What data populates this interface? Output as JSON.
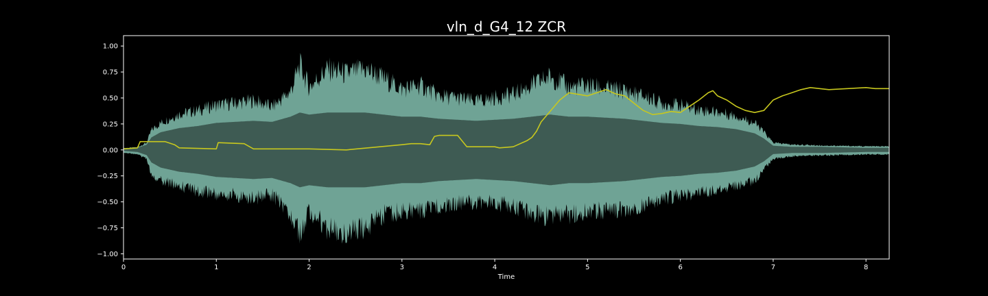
{
  "chart_data": {
    "type": "area",
    "title": "vln_d_G4_12 ZCR",
    "xlabel": "Time",
    "ylabel": "",
    "xlim": [
      0,
      8.25
    ],
    "ylim": [
      -1.05,
      1.1
    ],
    "xticks": [
      "0",
      "1",
      "2",
      "3",
      "4",
      "5",
      "6",
      "7",
      "8"
    ],
    "yticks": [
      "1.00",
      "0.75",
      "0.50",
      "0.25",
      "0.00",
      "−0.25",
      "−0.50",
      "−0.75",
      "−1.00"
    ],
    "grid": false,
    "legend": "none",
    "colors": {
      "background": "#000000",
      "waveform_fill": "#3e5b53",
      "waveform_peaks": "#6fa395",
      "zcr_line": "#c8c81e",
      "axes": "#ffffff"
    },
    "series": [
      {
        "kind": "waveform-envelope",
        "t": [
          0,
          0.15,
          0.25,
          0.3,
          0.4,
          0.6,
          0.8,
          1.0,
          1.2,
          1.4,
          1.6,
          1.8,
          1.9,
          2.0,
          2.2,
          2.4,
          2.6,
          2.8,
          3.0,
          3.2,
          3.4,
          3.6,
          3.8,
          4.0,
          4.2,
          4.4,
          4.6,
          4.8,
          5.0,
          5.2,
          5.4,
          5.6,
          5.8,
          6.0,
          6.2,
          6.4,
          6.6,
          6.8,
          6.9,
          7.0,
          7.2,
          7.5,
          8.0,
          8.25
        ],
        "upper": [
          0.02,
          0.03,
          0.08,
          0.22,
          0.3,
          0.4,
          0.44,
          0.5,
          0.52,
          0.55,
          0.48,
          0.65,
          0.95,
          0.7,
          0.9,
          0.85,
          0.9,
          0.8,
          0.68,
          0.72,
          0.6,
          0.58,
          0.54,
          0.58,
          0.62,
          0.72,
          0.82,
          0.7,
          0.72,
          0.68,
          0.66,
          0.6,
          0.52,
          0.5,
          0.45,
          0.42,
          0.38,
          0.3,
          0.2,
          0.08,
          0.06,
          0.05,
          0.04,
          0.04
        ],
        "lower": [
          -0.03,
          -0.05,
          -0.1,
          -0.28,
          -0.34,
          -0.4,
          -0.46,
          -0.5,
          -0.5,
          -0.55,
          -0.5,
          -0.7,
          -0.95,
          -0.68,
          -0.88,
          -0.92,
          -0.88,
          -0.72,
          -0.68,
          -0.7,
          -0.62,
          -0.6,
          -0.58,
          -0.6,
          -0.62,
          -0.7,
          -0.75,
          -0.72,
          -0.7,
          -0.68,
          -0.66,
          -0.62,
          -0.56,
          -0.5,
          -0.48,
          -0.44,
          -0.4,
          -0.34,
          -0.22,
          -0.1,
          -0.07,
          -0.06,
          -0.05,
          -0.05
        ],
        "core_upper": [
          0.01,
          0.02,
          0.05,
          0.12,
          0.17,
          0.21,
          0.23,
          0.26,
          0.27,
          0.28,
          0.27,
          0.32,
          0.36,
          0.34,
          0.36,
          0.36,
          0.36,
          0.34,
          0.32,
          0.32,
          0.3,
          0.29,
          0.28,
          0.29,
          0.3,
          0.32,
          0.34,
          0.32,
          0.32,
          0.31,
          0.3,
          0.28,
          0.26,
          0.25,
          0.23,
          0.22,
          0.2,
          0.16,
          0.11,
          0.04,
          0.03,
          0.03,
          0.02,
          0.02
        ],
        "core_lower": [
          -0.01,
          -0.02,
          -0.05,
          -0.12,
          -0.17,
          -0.21,
          -0.23,
          -0.26,
          -0.27,
          -0.28,
          -0.27,
          -0.32,
          -0.36,
          -0.34,
          -0.36,
          -0.36,
          -0.36,
          -0.34,
          -0.32,
          -0.32,
          -0.3,
          -0.29,
          -0.28,
          -0.29,
          -0.3,
          -0.32,
          -0.34,
          -0.32,
          -0.32,
          -0.31,
          -0.3,
          -0.28,
          -0.26,
          -0.25,
          -0.23,
          -0.22,
          -0.2,
          -0.16,
          -0.11,
          -0.04,
          -0.03,
          -0.03,
          -0.02,
          -0.02
        ]
      },
      {
        "kind": "line",
        "x": [
          0,
          0.15,
          0.18,
          0.45,
          0.55,
          0.6,
          1.0,
          1.02,
          1.3,
          1.4,
          2.0,
          2.4,
          3.0,
          3.1,
          3.2,
          3.3,
          3.35,
          3.4,
          3.6,
          3.7,
          3.8,
          4.0,
          4.05,
          4.2,
          4.35,
          4.4,
          4.45,
          4.5,
          4.7,
          4.8,
          5.0,
          5.2,
          5.3,
          5.4,
          5.5,
          5.6,
          5.7,
          5.8,
          5.9,
          6.0,
          6.1,
          6.2,
          6.3,
          6.35,
          6.4,
          6.5,
          6.6,
          6.7,
          6.8,
          6.9,
          7.0,
          7.1,
          7.2,
          7.3,
          7.4,
          7.5,
          7.6,
          7.8,
          8.0,
          8.1,
          8.25
        ],
        "y": [
          0.01,
          0.02,
          0.08,
          0.08,
          0.05,
          0.02,
          0.01,
          0.07,
          0.06,
          0.01,
          0.01,
          0.0,
          0.05,
          0.06,
          0.06,
          0.05,
          0.13,
          0.14,
          0.14,
          0.03,
          0.03,
          0.03,
          0.02,
          0.03,
          0.09,
          0.12,
          0.18,
          0.27,
          0.48,
          0.55,
          0.52,
          0.58,
          0.54,
          0.52,
          0.45,
          0.38,
          0.34,
          0.35,
          0.37,
          0.36,
          0.42,
          0.48,
          0.55,
          0.57,
          0.52,
          0.48,
          0.42,
          0.38,
          0.36,
          0.38,
          0.48,
          0.52,
          0.55,
          0.58,
          0.6,
          0.59,
          0.58,
          0.59,
          0.6,
          0.59,
          0.59
        ]
      }
    ]
  }
}
